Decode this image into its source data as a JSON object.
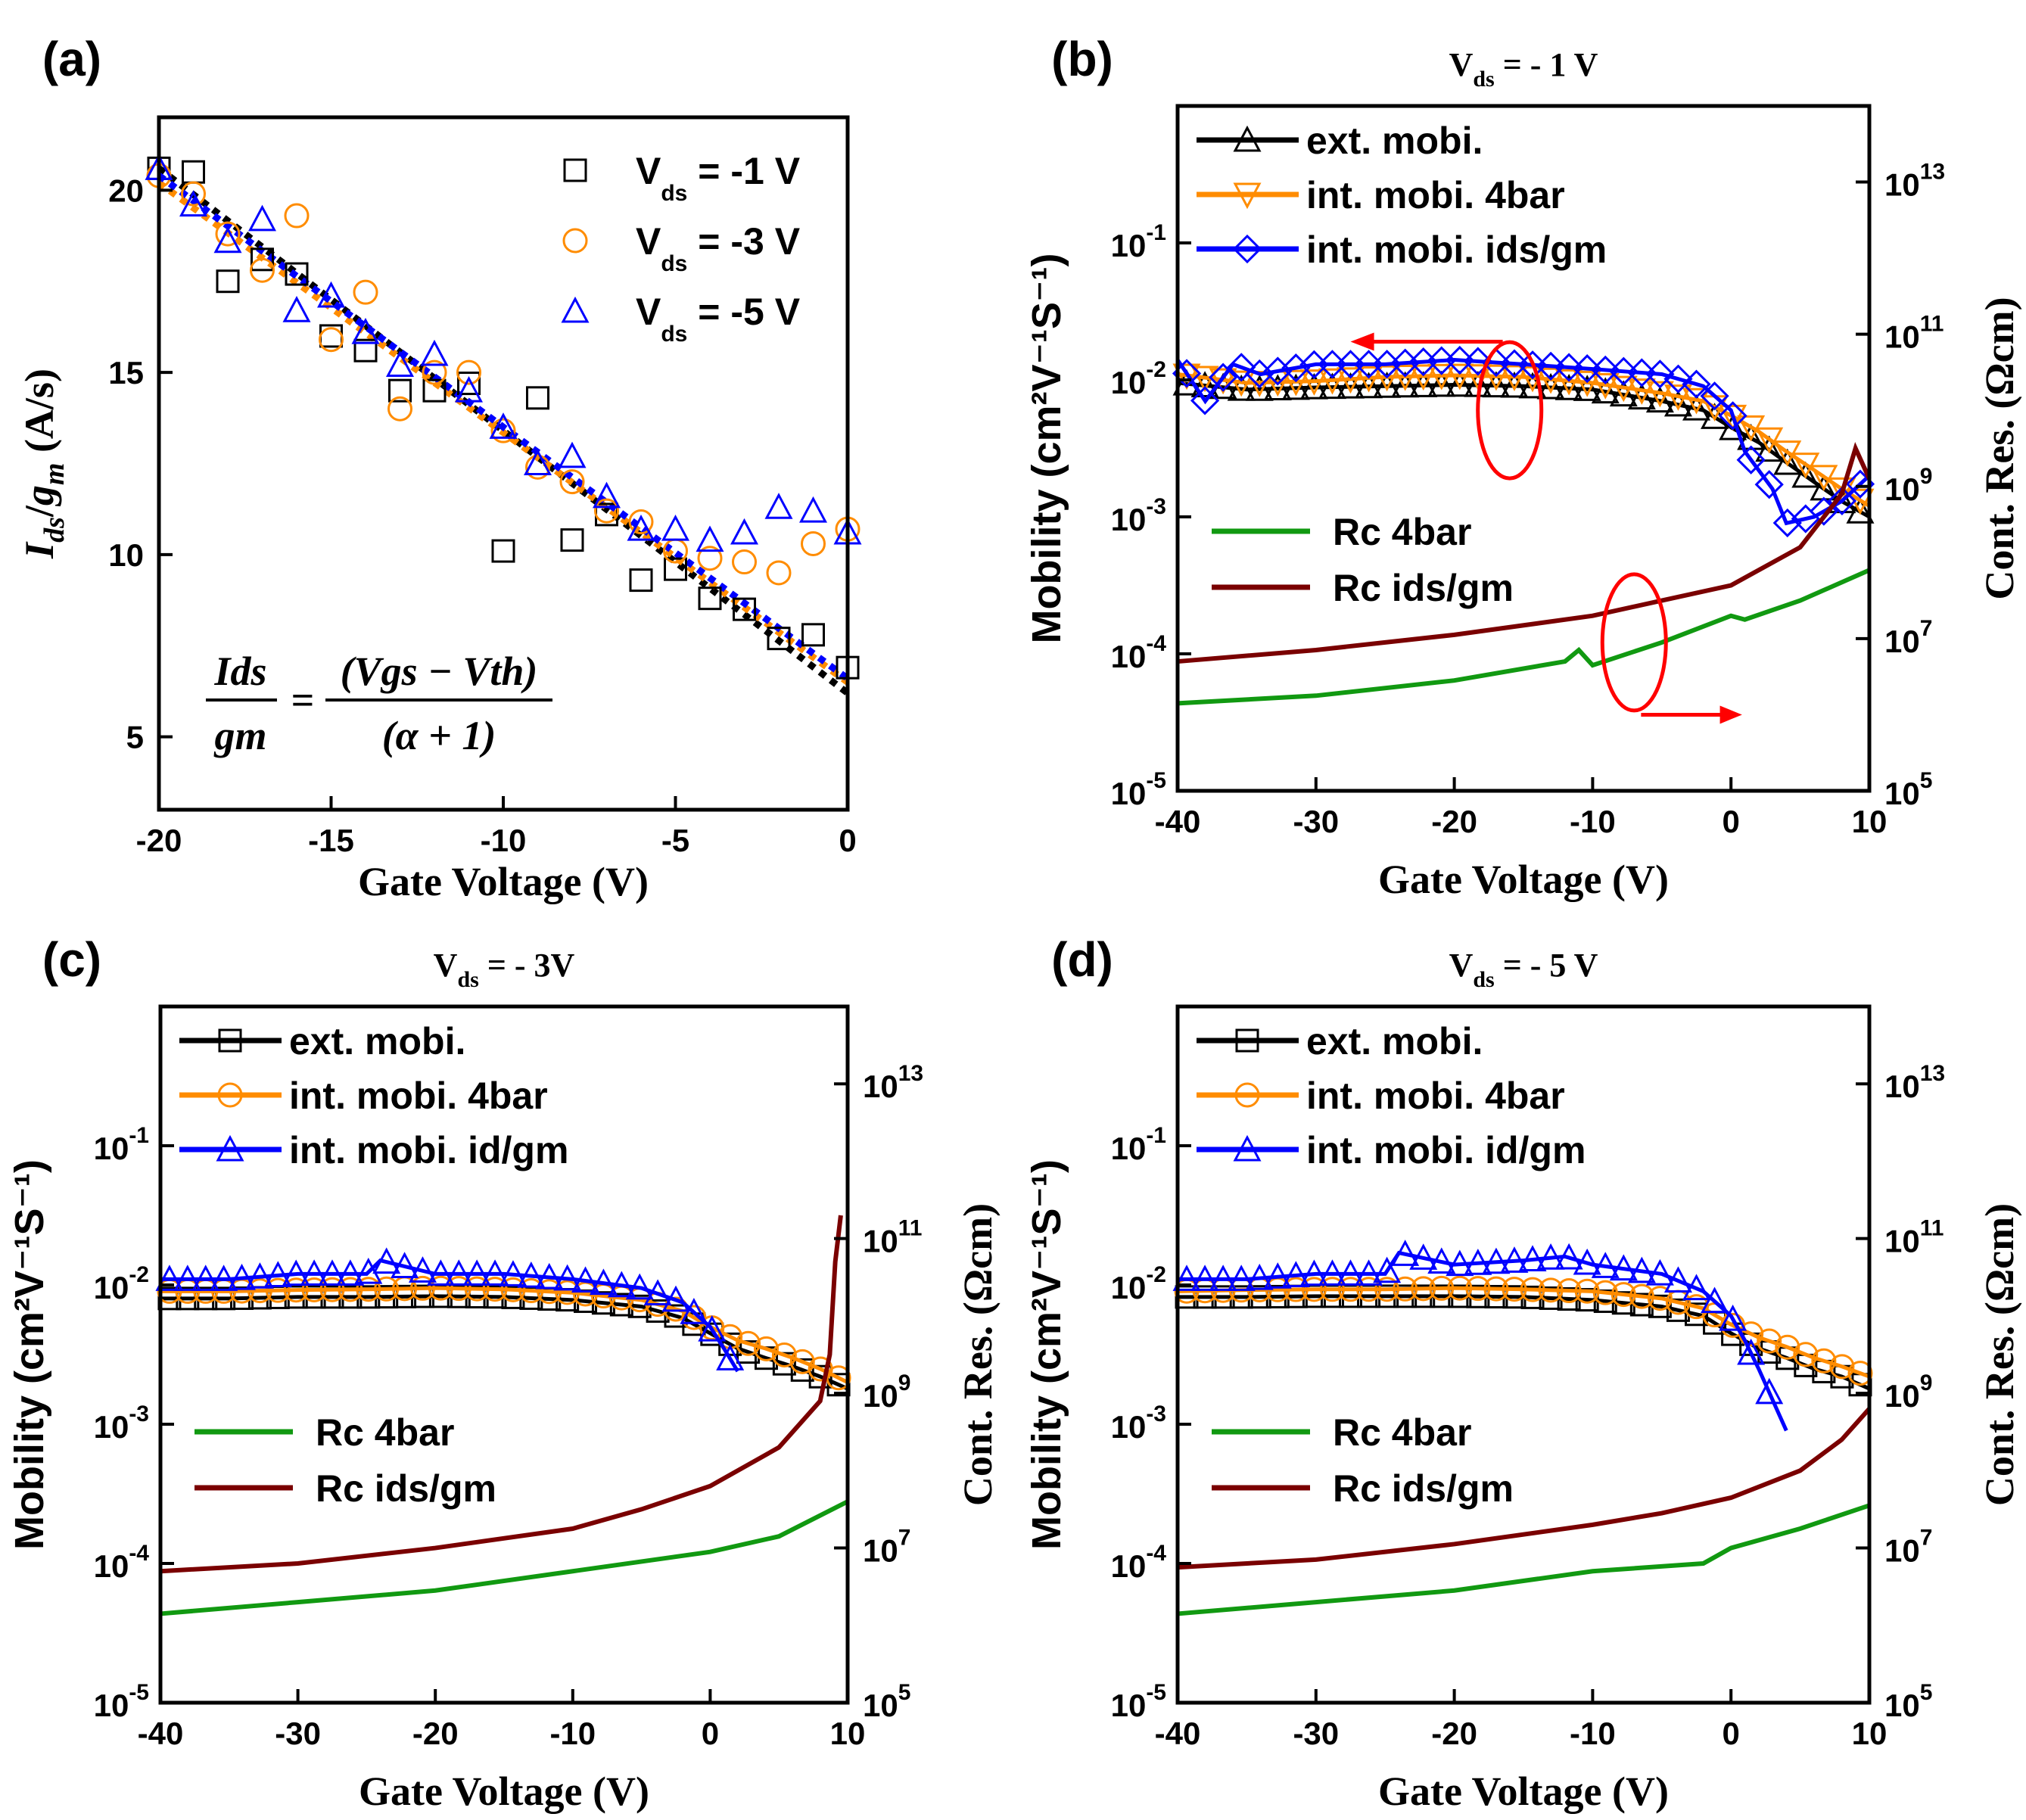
{
  "figure": {
    "panel_labels": [
      "(a)",
      "(b)",
      "(c)",
      "(d)"
    ],
    "axis_titles": {
      "gate_voltage": "Gate Voltage (V)",
      "a_y": "Ids/gm (A/s)",
      "mobility": "Mobility (cm²V⁻¹S⁻¹)",
      "cont_res": "Cont. Res. (Ωcm)"
    },
    "equation": {
      "lhs_num": "Ids",
      "lhs_den": "gm",
      "rhs_num": "(Vgs − Vth)",
      "rhs_den": "(α + 1)"
    },
    "colors": {
      "black": "#000000",
      "orange": "#ff8c00",
      "blue": "#0000ff",
      "green": "#119911",
      "darkred": "#7a0000",
      "red": "#ff0000"
    }
  },
  "chart_data": [
    {
      "id": "a",
      "type": "scatter",
      "title": "",
      "xlabel": "Gate Voltage (V)",
      "ylabel": "Ids/gm (A/s)",
      "xlim": [
        -20,
        0
      ],
      "ylim": [
        3,
        22
      ],
      "xticks": [
        -20,
        -15,
        -10,
        -5,
        0
      ],
      "yticks": [
        5,
        10,
        15,
        20
      ],
      "series": [
        {
          "name": "Vds = -1 V",
          "legend": "V",
          "legend_sub": "ds",
          "legend_rest": " = -1 V",
          "marker": "square",
          "color": "#000000",
          "x": [
            -20,
            -19,
            -18,
            -17,
            -16,
            -15,
            -14,
            -13,
            -12,
            -11,
            -10,
            -9,
            -8,
            -7,
            -6,
            -5,
            -4,
            -3,
            -2,
            -1,
            0
          ],
          "y": [
            20.6,
            20.5,
            17.5,
            18.1,
            17.7,
            16.0,
            15.6,
            14.5,
            14.5,
            14.7,
            10.1,
            14.3,
            10.4,
            11.1,
            9.3,
            9.6,
            8.8,
            8.5,
            7.7,
            7.8,
            6.9
          ]
        },
        {
          "name": "Vds = -3 V",
          "legend": "V",
          "legend_sub": "ds",
          "legend_rest": " = -3 V",
          "marker": "circle",
          "color": "#ff8c00",
          "x": [
            -20,
            -19,
            -18,
            -17,
            -16,
            -15,
            -14,
            -13,
            -12,
            -11,
            -10,
            -9,
            -8,
            -7,
            -6,
            -5,
            -4,
            -3,
            -2,
            -1,
            0
          ],
          "y": [
            20.4,
            19.9,
            18.8,
            17.8,
            19.3,
            15.9,
            17.2,
            14.0,
            15.0,
            15.0,
            13.4,
            12.4,
            12.0,
            11.2,
            10.9,
            10.1,
            9.9,
            9.8,
            9.5,
            10.3,
            10.7
          ]
        },
        {
          "name": "Vds = -5 V",
          "legend": "V",
          "legend_sub": "ds",
          "legend_rest": " = -5 V",
          "marker": "triangle",
          "color": "#0000ff",
          "x": [
            -20,
            -19,
            -18,
            -17,
            -16,
            -15,
            -14,
            -13,
            -12,
            -11,
            -10,
            -9,
            -8,
            -7,
            -6,
            -5,
            -4,
            -3,
            -2,
            -1,
            0
          ],
          "y": [
            20.6,
            19.6,
            18.6,
            19.2,
            16.7,
            17.1,
            16.1,
            15.2,
            15.5,
            14.5,
            13.5,
            12.5,
            12.7,
            11.6,
            10.7,
            10.7,
            10.4,
            10.6,
            11.3,
            11.2,
            10.6
          ]
        }
      ],
      "fit_lines": [
        {
          "name": "fit -1 V",
          "color": "#000000",
          "x": [
            -20,
            0
          ],
          "y": [
            20.6,
            6.2
          ]
        },
        {
          "name": "fit -3 V",
          "color": "#ff8c00",
          "x": [
            -20,
            0
          ],
          "y": [
            20.2,
            6.5
          ]
        },
        {
          "name": "fit -5 V",
          "color": "#0000ff",
          "x": [
            -20,
            0
          ],
          "y": [
            20.4,
            6.6
          ]
        }
      ]
    },
    {
      "id": "b",
      "type": "line",
      "title_main": "V",
      "title_sub": "ds",
      "title_rest": " = - 1 V",
      "xlabel": "Gate Voltage (V)",
      "ylabel": "Mobility (cm²V⁻¹S⁻¹)",
      "y2label": "Cont. Res. (Ωcm)",
      "xlim": [
        -40,
        10
      ],
      "xticks": [
        -40,
        -30,
        -20,
        -10,
        0,
        10
      ],
      "ylim_log": [
        -5,
        0
      ],
      "y2lim_log": [
        5,
        14
      ],
      "yticks_exp": [
        -5,
        -4,
        -3,
        -2,
        -1
      ],
      "y2ticks_exp": [
        5,
        7,
        9,
        11,
        13
      ],
      "series": [
        {
          "name": "ext. mobi.",
          "axis": "left",
          "marker": "triangle",
          "color": "#000000",
          "x": [
            -40,
            -35,
            -30,
            -25,
            -20,
            -15,
            -10,
            -5,
            -2,
            0,
            2,
            4,
            6,
            8,
            10
          ],
          "y": [
            0.0095,
            0.0085,
            0.0088,
            0.009,
            0.0092,
            0.009,
            0.0085,
            0.007,
            0.006,
            0.0045,
            0.0035,
            0.0025,
            0.0018,
            0.0013,
            0.001
          ]
        },
        {
          "name": "int. mobi. 4bar",
          "axis": "left",
          "marker": "triangle-down",
          "color": "#ff8c00",
          "x": [
            -40,
            -35,
            -30,
            -25,
            -20,
            -15,
            -10,
            -5,
            -2,
            0,
            2,
            4,
            6,
            8,
            10
          ],
          "y": [
            0.011,
            0.0095,
            0.0098,
            0.0105,
            0.0108,
            0.0105,
            0.0095,
            0.008,
            0.007,
            0.0055,
            0.0042,
            0.003,
            0.0022,
            0.0016,
            0.0012
          ]
        },
        {
          "name": "int. mobi. ids/gm",
          "axis": "left",
          "marker": "diamond",
          "color": "#0000ff",
          "x": [
            -40,
            -38,
            -36,
            -34,
            -30,
            -25,
            -20,
            -15,
            -10,
            -5,
            -2,
            0,
            1,
            3,
            4,
            6,
            8,
            10
          ],
          "y": [
            0.014,
            0.007,
            0.013,
            0.011,
            0.013,
            0.013,
            0.014,
            0.013,
            0.012,
            0.011,
            0.009,
            0.006,
            0.003,
            0.0016,
            0.0009,
            0.001,
            0.0013,
            0.002
          ]
        },
        {
          "name": "Rc 4bar",
          "axis": "right",
          "marker": "none",
          "color": "#119911",
          "x": [
            -40,
            -30,
            -20,
            -12,
            -11,
            -10,
            -5,
            0,
            1,
            5,
            10
          ],
          "y_log": [
            6.15,
            6.25,
            6.45,
            6.7,
            6.85,
            6.65,
            6.95,
            7.3,
            7.25,
            7.5,
            7.9
          ]
        },
        {
          "name": "Rc ids/gm",
          "axis": "right",
          "marker": "none",
          "color": "#7a0000",
          "x": [
            -40,
            -30,
            -20,
            -10,
            -5,
            0,
            5,
            8,
            9,
            10
          ],
          "y_log": [
            6.7,
            6.85,
            7.05,
            7.3,
            7.5,
            7.7,
            8.2,
            8.9,
            9.5,
            9.1
          ]
        }
      ],
      "annotations": [
        "ellipse around mobility curves with arrow to left axis",
        "ellipse around Rc curves with arrow to right axis"
      ]
    },
    {
      "id": "c",
      "type": "line",
      "title_main": "V",
      "title_sub": "ds",
      "title_rest": " = - 3V",
      "xlabel": "Gate Voltage (V)",
      "ylabel": "Mobility (cm²V⁻¹S⁻¹)",
      "y2label": "Cont. Res. (Ωcm)",
      "xlim": [
        -40,
        10
      ],
      "xticks": [
        -40,
        -30,
        -20,
        -10,
        0,
        10
      ],
      "ylim_log": [
        -5,
        0
      ],
      "y2lim_log": [
        5,
        14
      ],
      "yticks_exp": [
        -5,
        -4,
        -3,
        -2,
        -1
      ],
      "y2ticks_exp": [
        5,
        7,
        9,
        11,
        13
      ],
      "series": [
        {
          "name": "ext. mobi.",
          "axis": "left",
          "marker": "square",
          "color": "#000000",
          "x": [
            -40,
            -35,
            -30,
            -25,
            -20,
            -15,
            -10,
            -5,
            -2,
            0,
            2,
            4,
            6,
            8,
            10
          ],
          "y": [
            0.008,
            0.008,
            0.0082,
            0.0082,
            0.0083,
            0.0082,
            0.0078,
            0.007,
            0.0058,
            0.0045,
            0.0035,
            0.003,
            0.0026,
            0.0022,
            0.0018
          ]
        },
        {
          "name": "int. mobi. 4bar",
          "axis": "left",
          "marker": "circle",
          "color": "#ff8c00",
          "x": [
            -40,
            -35,
            -30,
            -25,
            -20,
            -15,
            -10,
            -5,
            -2,
            0,
            2,
            4,
            6,
            8,
            10
          ],
          "y": [
            0.009,
            0.009,
            0.0092,
            0.0093,
            0.0095,
            0.0093,
            0.0088,
            0.0078,
            0.0065,
            0.005,
            0.004,
            0.0035,
            0.003,
            0.0025,
            0.002
          ]
        },
        {
          "name": "int. mobi. id/gm",
          "axis": "left",
          "marker": "triangle",
          "color": "#0000ff",
          "x": [
            -40,
            -35,
            -30,
            -25,
            -24,
            -20,
            -15,
            -10,
            -5,
            -2,
            0,
            1,
            2
          ],
          "y": [
            0.011,
            0.011,
            0.012,
            0.012,
            0.015,
            0.012,
            0.012,
            0.011,
            0.0095,
            0.0075,
            0.005,
            0.0035,
            0.0024
          ]
        },
        {
          "name": "Rc 4bar",
          "axis": "right",
          "marker": "none",
          "color": "#119911",
          "x": [
            -40,
            -30,
            -20,
            -10,
            0,
            5,
            10
          ],
          "y_log": [
            6.15,
            6.3,
            6.45,
            6.7,
            6.95,
            7.15,
            7.6
          ]
        },
        {
          "name": "Rc ids/gm",
          "axis": "right",
          "marker": "none",
          "color": "#7a0000",
          "x": [
            -40,
            -30,
            -20,
            -10,
            -5,
            0,
            5,
            8,
            8.7,
            9.1,
            9.5
          ],
          "y_log": [
            6.7,
            6.8,
            7.0,
            7.25,
            7.5,
            7.8,
            8.3,
            8.9,
            9.5,
            10.7,
            11.3
          ]
        }
      ]
    },
    {
      "id": "d",
      "type": "line",
      "title_main": "V",
      "title_sub": "ds",
      "title_rest": " = - 5 V",
      "xlabel": "Gate Voltage (V)",
      "ylabel": "Mobility (cm²V⁻¹S⁻¹)",
      "y2label": "Cont. Res. (Ωcm)",
      "xlim": [
        -40,
        10
      ],
      "xticks": [
        -40,
        -30,
        -20,
        -10,
        0,
        10
      ],
      "ylim_log": [
        -5,
        0
      ],
      "y2lim_log": [
        5,
        14
      ],
      "yticks_exp": [
        -5,
        -4,
        -3,
        -2,
        -1
      ],
      "y2ticks_exp": [
        5,
        7,
        9,
        11,
        13
      ],
      "series": [
        {
          "name": "ext. mobi.",
          "axis": "left",
          "marker": "square",
          "color": "#000000",
          "x": [
            -40,
            -35,
            -30,
            -25,
            -20,
            -15,
            -10,
            -5,
            -2,
            0,
            2,
            4,
            6,
            8,
            10
          ],
          "y": [
            0.0082,
            0.0082,
            0.0083,
            0.0083,
            0.0083,
            0.0082,
            0.0078,
            0.007,
            0.006,
            0.0045,
            0.0035,
            0.003,
            0.0025,
            0.0022,
            0.0018
          ]
        },
        {
          "name": "int. mobi. 4bar",
          "axis": "left",
          "marker": "circle",
          "color": "#ff8c00",
          "x": [
            -40,
            -35,
            -30,
            -25,
            -20,
            -15,
            -10,
            -5,
            -2,
            0,
            2,
            4,
            6,
            8,
            10
          ],
          "y": [
            0.009,
            0.0092,
            0.0093,
            0.0093,
            0.0095,
            0.0093,
            0.009,
            0.008,
            0.0068,
            0.0052,
            0.0042,
            0.0036,
            0.003,
            0.0026,
            0.0022
          ]
        },
        {
          "name": "int. mobi. id/gm",
          "axis": "left",
          "marker": "triangle",
          "color": "#0000ff",
          "x": [
            -40,
            -35,
            -30,
            -25,
            -24,
            -20,
            -15,
            -12,
            -10,
            -5,
            -2,
            0,
            1,
            2,
            3,
            4
          ],
          "y": [
            0.011,
            0.011,
            0.012,
            0.012,
            0.017,
            0.014,
            0.015,
            0.016,
            0.014,
            0.012,
            0.009,
            0.006,
            0.004,
            0.0025,
            0.0015,
            0.0009
          ]
        },
        {
          "name": "Rc 4bar",
          "axis": "right",
          "marker": "none",
          "color": "#119911",
          "x": [
            -40,
            -30,
            -20,
            -10,
            -2,
            0,
            5,
            10
          ],
          "y_log": [
            6.15,
            6.3,
            6.45,
            6.7,
            6.8,
            7.0,
            7.25,
            7.55
          ]
        },
        {
          "name": "Rc ids/gm",
          "axis": "right",
          "marker": "none",
          "color": "#7a0000",
          "x": [
            -40,
            -30,
            -20,
            -10,
            -5,
            0,
            5,
            8,
            10
          ],
          "y_log": [
            6.75,
            6.85,
            7.05,
            7.3,
            7.45,
            7.65,
            8.0,
            8.4,
            8.8
          ]
        }
      ]
    }
  ]
}
